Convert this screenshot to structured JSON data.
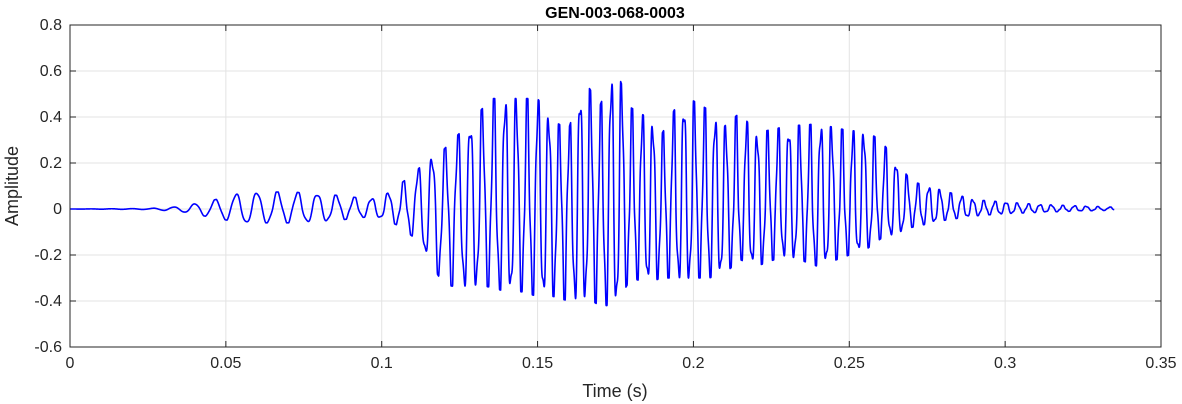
{
  "chart_data": {
    "type": "line",
    "title": "GEN-003-068-0003",
    "xlabel": "Time (s)",
    "ylabel": "Amplitude",
    "xlim": [
      0,
      0.35
    ],
    "ylim": [
      -0.6,
      0.8
    ],
    "xticks": [
      0,
      0.05,
      0.1,
      0.15,
      0.2,
      0.25,
      0.3,
      0.35
    ],
    "xtick_labels": [
      "0",
      "0.05",
      "0.1",
      "0.15",
      "0.2",
      "0.25",
      "0.3",
      "0.35"
    ],
    "yticks": [
      -0.6,
      -0.4,
      -0.2,
      0,
      0.2,
      0.4,
      0.6,
      0.8
    ],
    "ytick_labels": [
      "-0.6",
      "-0.4",
      "-0.2",
      "0",
      "0.2",
      "0.4",
      "0.6",
      "0.8"
    ],
    "grid": true,
    "series": [
      {
        "color": "#0000ff",
        "duration": 0.335,
        "envelope_max": {
          "t": [
            0,
            0.025,
            0.035,
            0.045,
            0.055,
            0.07,
            0.085,
            0.095,
            0.1,
            0.105,
            0.11,
            0.115,
            0.12,
            0.125,
            0.13,
            0.135,
            0.14,
            0.145,
            0.15,
            0.155,
            0.16,
            0.165,
            0.17,
            0.175,
            0.18,
            0.185,
            0.19,
            0.195,
            0.2,
            0.205,
            0.21,
            0.215,
            0.22,
            0.23,
            0.24,
            0.25,
            0.255,
            0.26,
            0.27,
            0.28,
            0.29,
            0.3,
            0.31,
            0.32,
            0.335
          ],
          "v": [
            0,
            0.002,
            0.01,
            0.035,
            0.07,
            0.075,
            0.06,
            0.045,
            0.05,
            0.1,
            0.15,
            0.22,
            0.26,
            0.33,
            0.4,
            0.48,
            0.48,
            0.48,
            0.48,
            0.38,
            0.35,
            0.56,
            0.45,
            0.61,
            0.44,
            0.4,
            0.33,
            0.46,
            0.47,
            0.43,
            0.36,
            0.42,
            0.33,
            0.36,
            0.37,
            0.34,
            0.34,
            0.3,
            0.12,
            0.08,
            0.04,
            0.03,
            0.02,
            0.015,
            0.008
          ]
        },
        "envelope_min": {
          "t": [
            0,
            0.025,
            0.035,
            0.045,
            0.055,
            0.07,
            0.085,
            0.095,
            0.1,
            0.105,
            0.11,
            0.115,
            0.12,
            0.125,
            0.13,
            0.135,
            0.14,
            0.145,
            0.15,
            0.155,
            0.16,
            0.165,
            0.17,
            0.175,
            0.18,
            0.185,
            0.19,
            0.195,
            0.2,
            0.205,
            0.21,
            0.215,
            0.22,
            0.23,
            0.24,
            0.25,
            0.255,
            0.26,
            0.27,
            0.28,
            0.29,
            0.3,
            0.31,
            0.32,
            0.335
          ],
          "v": [
            0,
            -0.002,
            -0.01,
            -0.035,
            -0.06,
            -0.06,
            -0.05,
            -0.035,
            -0.04,
            -0.07,
            -0.12,
            -0.22,
            -0.33,
            -0.34,
            -0.33,
            -0.34,
            -0.36,
            -0.36,
            -0.38,
            -0.38,
            -0.4,
            -0.38,
            -0.42,
            -0.42,
            -0.3,
            -0.32,
            -0.3,
            -0.3,
            -0.3,
            -0.3,
            -0.28,
            -0.22,
            -0.25,
            -0.2,
            -0.25,
            -0.2,
            -0.18,
            -0.13,
            -0.08,
            -0.05,
            -0.03,
            -0.02,
            -0.015,
            -0.01,
            -0.005
          ]
        },
        "frequency_hz": {
          "t": [
            0,
            0.04,
            0.06,
            0.08,
            0.1,
            0.12,
            0.14,
            0.16,
            0.18,
            0.2,
            0.25,
            0.3,
            0.335
          ],
          "v": [
            150,
            150,
            150,
            160,
            190,
            240,
            280,
            300,
            300,
            300,
            290,
            280,
            260
          ]
        }
      }
    ]
  }
}
